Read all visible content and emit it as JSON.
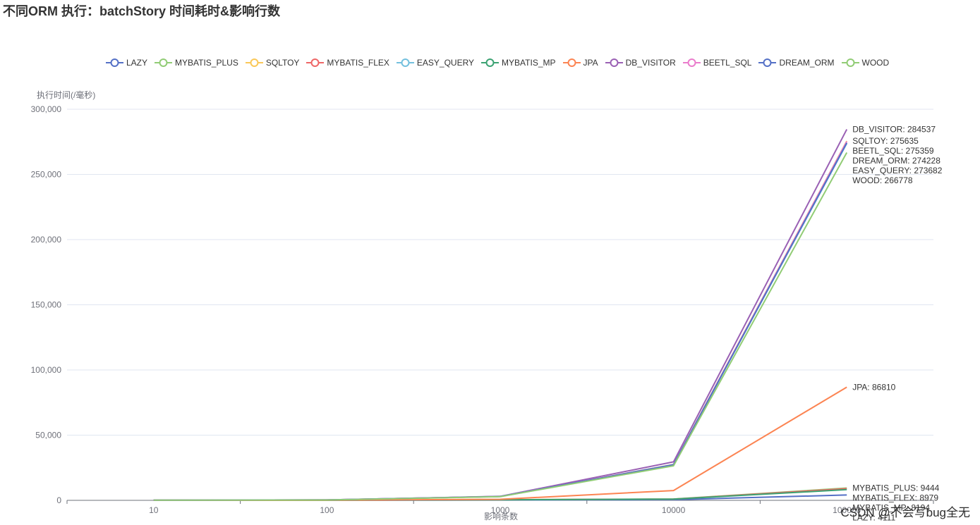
{
  "title": "不同ORM 执行：batchStory 时间耗时&影响行数",
  "watermark": "CSDN @不会写bug全无",
  "chart_data": {
    "type": "line",
    "title": "不同ORM 执行：batchStory 时间耗时&影响行数",
    "xlabel": "影响条数",
    "ylabel": "执行时间(/毫秒)",
    "categories": [
      "10",
      "100",
      "1000",
      "10000",
      "100000"
    ],
    "y_ticks": [
      "0",
      "50,000",
      "100,000",
      "150,000",
      "200,000",
      "250,000",
      "300,000"
    ],
    "ylim": [
      0,
      300000
    ],
    "grid": true,
    "legend_position": "top",
    "series": [
      {
        "name": "LAZY",
        "color": "#5470c6",
        "values": [
          40,
          50,
          220,
          500,
          4111
        ],
        "end_label": "LAZY: 4111"
      },
      {
        "name": "MYBATIS_PLUS",
        "color": "#91cc75",
        "values": [
          200,
          150,
          500,
          1000,
          9444
        ],
        "end_label": "MYBATIS_PLUS: 9444"
      },
      {
        "name": "SQLTOY",
        "color": "#fac858",
        "values": [
          100,
          300,
          3000,
          27500,
          275635
        ],
        "end_label": "SQLTOY: 275635"
      },
      {
        "name": "MYBATIS_FLEX",
        "color": "#ee6666",
        "values": [
          150,
          140,
          450,
          950,
          8979
        ],
        "end_label": "MYBATIS_FLEX: 8979"
      },
      {
        "name": "EASY_QUERY",
        "color": "#73c0de",
        "values": [
          100,
          300,
          2900,
          27300,
          273682
        ],
        "end_label": "EASY_QUERY: 273682"
      },
      {
        "name": "MYBATIS_MP",
        "color": "#3ba272",
        "values": [
          140,
          130,
          420,
          900,
          8194
        ],
        "end_label": "MYBATIS_MP: 8194"
      },
      {
        "name": "JPA",
        "color": "#fc8452",
        "values": [
          80,
          120,
          800,
          7500,
          86810
        ],
        "end_label": "JPA: 86810"
      },
      {
        "name": "DB_VISITOR",
        "color": "#9a60b4",
        "values": [
          100,
          320,
          3100,
          29500,
          284537
        ],
        "end_label": "DB_VISITOR: 284537"
      },
      {
        "name": "BEETL_SQL",
        "color": "#ea7ccc",
        "values": [
          100,
          300,
          2950,
          27400,
          275359
        ],
        "end_label": "BEETL_SQL: 275359"
      },
      {
        "name": "DREAM_ORM",
        "color": "#5470c6",
        "values": [
          100,
          300,
          2950,
          27350,
          274228
        ],
        "end_label": "DREAM_ORM: 274228"
      },
      {
        "name": "WOOD",
        "color": "#91cc75",
        "values": [
          100,
          290,
          2800,
          26500,
          266778
        ],
        "end_label": "WOOD: 266778"
      }
    ]
  }
}
